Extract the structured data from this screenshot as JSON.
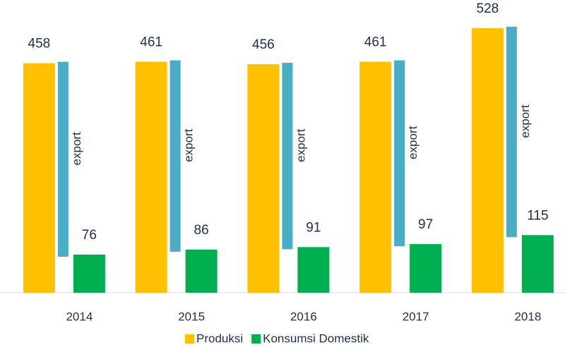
{
  "chart_data": {
    "type": "bar",
    "categories": [
      "2014",
      "2015",
      "2016",
      "2017",
      "2018"
    ],
    "series": [
      {
        "name": "Produksi",
        "color": "#ffc000",
        "values": [
          458,
          461,
          456,
          461,
          528
        ]
      },
      {
        "name": "Konsumsi Domestik",
        "color": "#00b050",
        "values": [
          76,
          86,
          91,
          97,
          115
        ]
      }
    ],
    "annotation": "export",
    "annotation_color": "#4bacc6",
    "ylim": [
      0,
      580
    ]
  }
}
